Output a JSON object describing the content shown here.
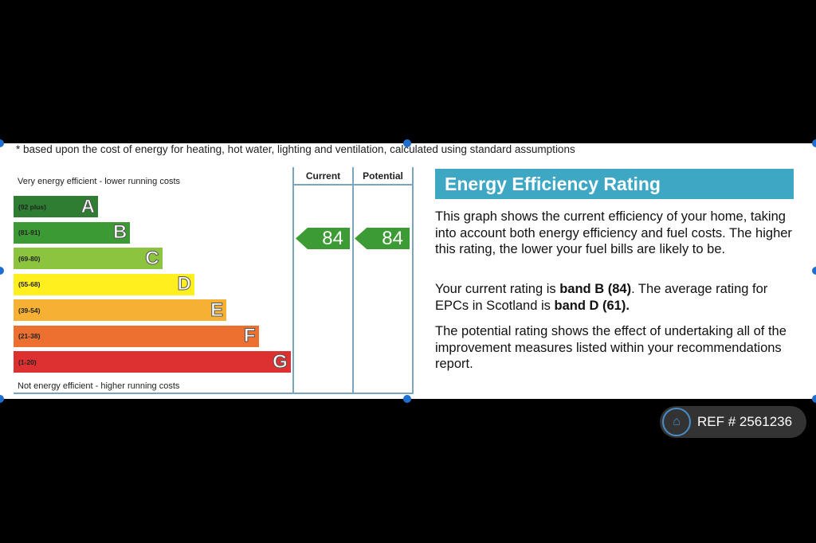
{
  "footnote": "* based upon the cost of energy for heating, hot water, lighting and ventilation, calculated using standard assumptions",
  "top_label": "Very energy efficient - lower running costs",
  "bottom_label": "Not energy efficient - higher running costs",
  "columns": {
    "current": "Current",
    "potential": "Potential"
  },
  "bands": [
    {
      "range": "(92 plus)",
      "letter": "A",
      "color": "#2e7d32"
    },
    {
      "range": "(81-91)",
      "letter": "B",
      "color": "#3c9a34"
    },
    {
      "range": "(69-80)",
      "letter": "C",
      "color": "#8cc43f"
    },
    {
      "range": "(55-68)",
      "letter": "D",
      "color": "#ffef1e"
    },
    {
      "range": "(39-54)",
      "letter": "E",
      "color": "#f6b034"
    },
    {
      "range": "(21-38)",
      "letter": "F",
      "color": "#ec7131"
    },
    {
      "range": "(1-20)",
      "letter": "G",
      "color": "#dd3131"
    }
  ],
  "current_rating": "84",
  "potential_rating": "84",
  "title": "Energy Efficiency Rating",
  "para1": "This graph shows the current efficiency of your home, taking into account both energy efficiency and fuel costs. The higher this rating, the lower your fuel bills are likely to be.",
  "para2_pre": "Your current rating is ",
  "para2_b1": "band B (84)",
  "para2_mid": ". The average rating for EPCs in Scotland is ",
  "para2_b2": "band D (61).",
  "para3": "The potential rating shows the effect of undertaking all of the improvement measures listed within your recommendations report.",
  "ref": "REF # 2561236"
}
